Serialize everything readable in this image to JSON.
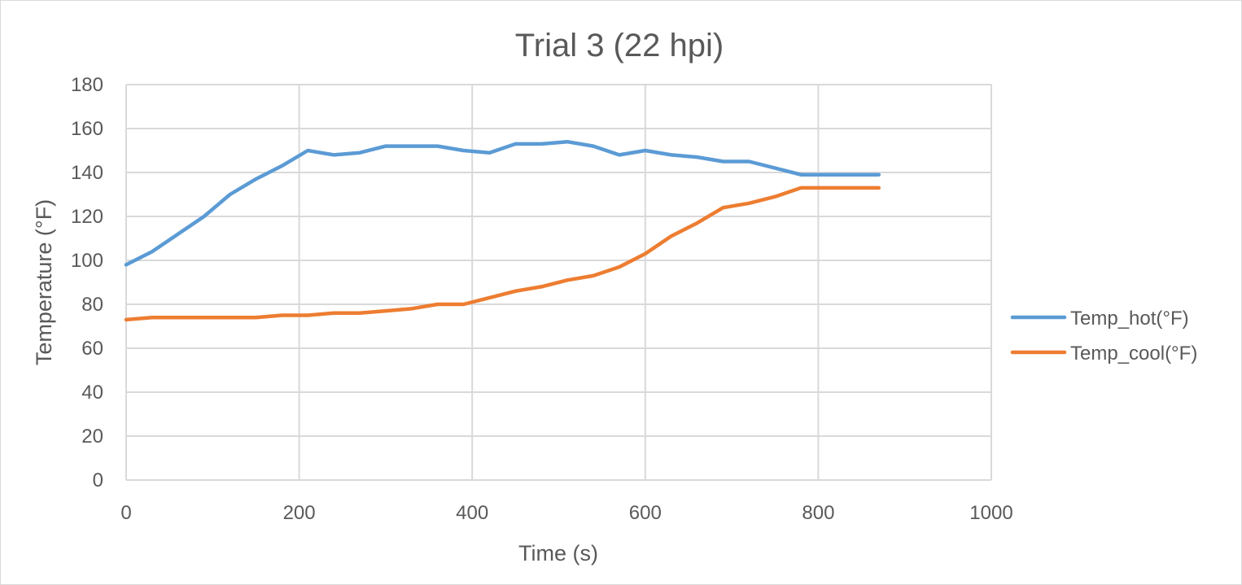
{
  "chart_data": {
    "type": "line",
    "title": "Trial 3 (22 hpi)",
    "xlabel": "Time (s)",
    "ylabel": "Temperature (°F)",
    "xlim": [
      0,
      1000
    ],
    "ylim": [
      0,
      180
    ],
    "xticks": [
      0,
      200,
      400,
      600,
      800,
      1000
    ],
    "yticks": [
      0,
      20,
      40,
      60,
      80,
      100,
      120,
      140,
      160,
      180
    ],
    "grid": true,
    "legend_position": "right",
    "series": [
      {
        "name": "Temp_hot(°F)",
        "color": "#5B9BD5",
        "x": [
          0,
          30,
          60,
          90,
          120,
          150,
          180,
          210,
          240,
          270,
          300,
          330,
          360,
          390,
          420,
          450,
          480,
          510,
          540,
          570,
          600,
          630,
          660,
          690,
          720,
          750,
          780,
          810,
          840,
          870
        ],
        "y": [
          98,
          104,
          112,
          120,
          130,
          137,
          143,
          150,
          148,
          149,
          152,
          152,
          152,
          150,
          149,
          153,
          153,
          154,
          152,
          148,
          150,
          148,
          147,
          145,
          145,
          142,
          139,
          139,
          139,
          139
        ]
      },
      {
        "name": "Temp_cool(°F)",
        "color": "#ED7D31",
        "x": [
          0,
          30,
          60,
          90,
          120,
          150,
          180,
          210,
          240,
          270,
          300,
          330,
          360,
          390,
          420,
          450,
          480,
          510,
          540,
          570,
          600,
          630,
          660,
          690,
          720,
          750,
          780,
          810,
          840,
          870
        ],
        "y": [
          73,
          74,
          74,
          74,
          74,
          74,
          75,
          75,
          76,
          76,
          77,
          78,
          80,
          80,
          83,
          86,
          88,
          91,
          93,
          97,
          103,
          111,
          117,
          124,
          126,
          129,
          133,
          133,
          133,
          133
        ]
      }
    ]
  }
}
